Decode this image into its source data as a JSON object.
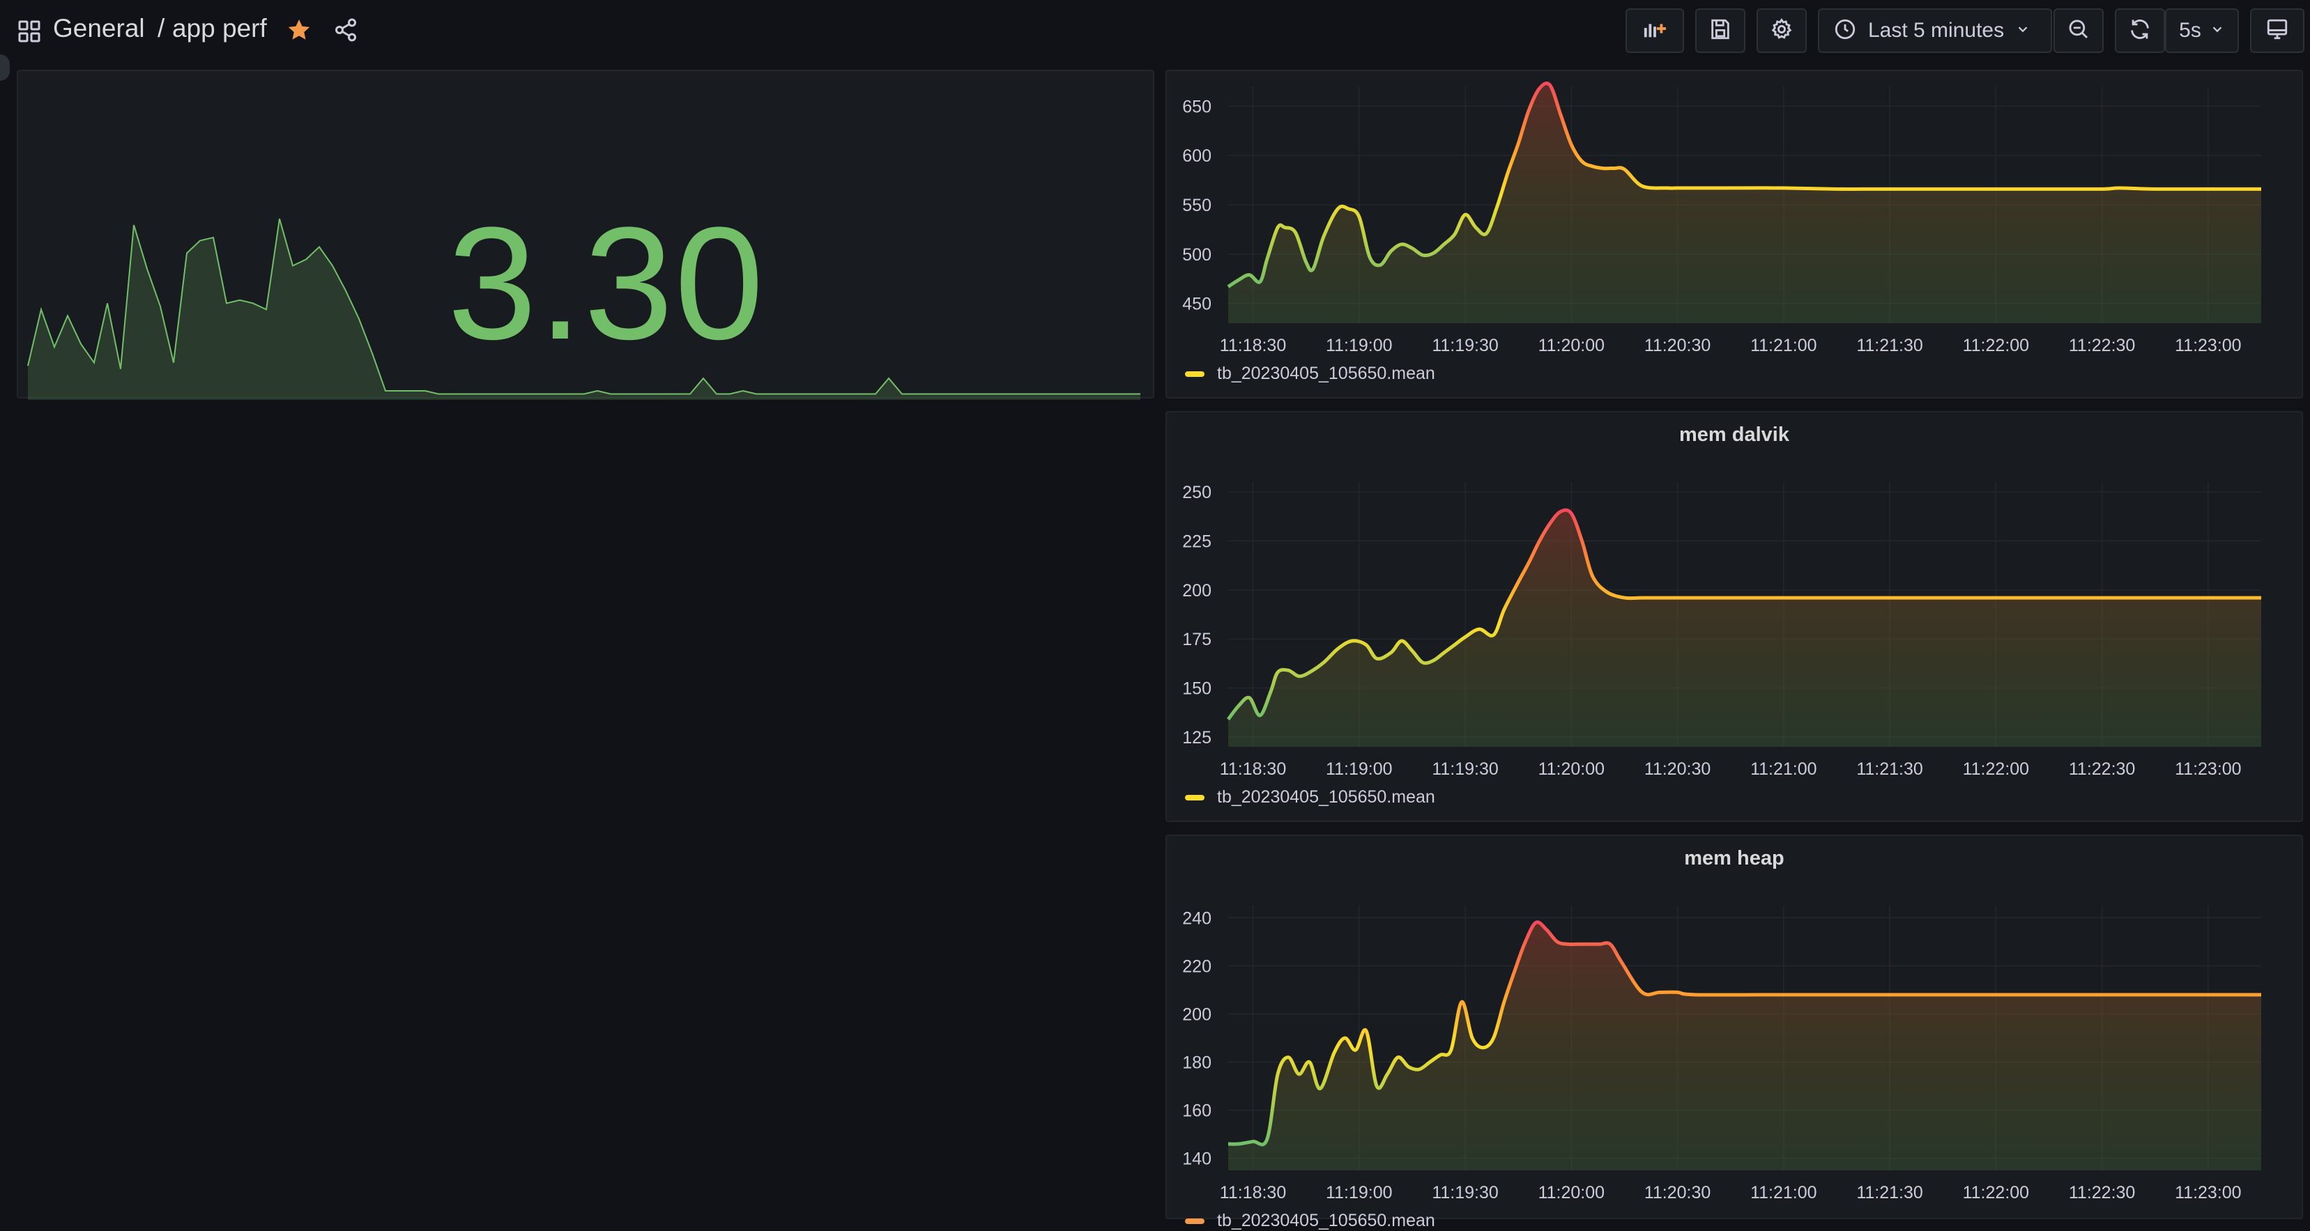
{
  "breadcrumb": {
    "folder": "General",
    "separator": "/",
    "dashboard": "app perf"
  },
  "icons": {
    "apps": "grid-icon",
    "favorite": "star-icon",
    "share": "share-icon",
    "add_panel": "add-panel-icon",
    "save": "save-icon",
    "settings": "gear-icon",
    "time": "clock-icon",
    "zoom_out": "zoom-out-icon",
    "refresh": "refresh-icon",
    "tv_mode": "monitor-icon"
  },
  "colors": {
    "background": "#111217",
    "panel": "#181b1f",
    "stat_green": "#73bf69",
    "star": "#f2994a",
    "series_yellow": "#fade2a",
    "series_red": "#f2495c"
  },
  "toolbar": {
    "time_range": "Last 5 minutes",
    "refresh_interval": "5s"
  },
  "stat_panel": {
    "value": "3.30",
    "sparkline": [
      10,
      28,
      16,
      26,
      17,
      11,
      30,
      9,
      55,
      41,
      29,
      11,
      46,
      50,
      51,
      30,
      31,
      30,
      28,
      57,
      42,
      44,
      48,
      42,
      34,
      25,
      14,
      2,
      2,
      2,
      2,
      1,
      1,
      1,
      1,
      1,
      1,
      1,
      1,
      1,
      1,
      1,
      1,
      2,
      1,
      1,
      1,
      1,
      1,
      1,
      1,
      6,
      1,
      1,
      2,
      1,
      1,
      1,
      1,
      1,
      1,
      1,
      1,
      1,
      1,
      6,
      1,
      1,
      1,
      1,
      1,
      1,
      1,
      1,
      1,
      1,
      1,
      1,
      1,
      1,
      1,
      1,
      1,
      1,
      1
    ]
  },
  "chart_data": [
    {
      "type": "line",
      "title": "",
      "x_ticks": [
        "11:18:30",
        "11:19:00",
        "11:19:30",
        "11:20:00",
        "11:20:30",
        "11:21:00",
        "11:21:30",
        "11:22:00",
        "11:22:30",
        "11:23:00"
      ],
      "y_ticks": [
        450,
        500,
        550,
        600,
        650
      ],
      "ylim": [
        430,
        670
      ],
      "series": [
        {
          "name": "tb_20230405_105650.mean",
          "x": [
            "11:18:23",
            "11:18:26",
            "11:18:29",
            "11:18:32",
            "11:18:34",
            "11:18:37",
            "11:18:39",
            "11:18:42",
            "11:18:45",
            "11:18:47",
            "11:18:50",
            "11:18:54",
            "11:18:57",
            "11:19:00",
            "11:19:03",
            "11:19:06",
            "11:19:09",
            "11:19:12",
            "11:19:15",
            "11:19:18",
            "11:19:21",
            "11:19:24",
            "11:19:27",
            "11:19:30",
            "11:19:33",
            "11:19:36",
            "11:19:39",
            "11:19:42",
            "11:19:45",
            "11:19:48",
            "11:19:51",
            "11:19:54",
            "11:19:57",
            "11:20:00",
            "11:20:03",
            "11:20:06",
            "11:20:09",
            "11:20:12",
            "11:20:15",
            "11:20:20",
            "11:20:27",
            "11:20:30",
            "11:20:35",
            "11:20:45",
            "11:21:00",
            "11:21:15",
            "11:21:30",
            "11:21:45",
            "11:22:00",
            "11:22:15",
            "11:22:30",
            "11:22:35",
            "11:22:45",
            "11:23:00",
            "11:23:10",
            "11:23:15"
          ],
          "values": [
            467,
            474,
            479,
            472,
            495,
            527,
            527,
            522,
            492,
            485,
            518,
            546,
            546,
            538,
            497,
            489,
            503,
            510,
            506,
            499,
            501,
            510,
            520,
            540,
            527,
            521,
            548,
            582,
            612,
            646,
            668,
            671,
            641,
            611,
            594,
            589,
            587,
            587,
            586,
            569,
            567,
            567,
            567,
            567,
            567,
            566,
            566,
            566,
            566,
            566,
            566,
            567,
            566,
            566,
            566,
            566
          ]
        }
      ]
    },
    {
      "type": "line",
      "title": "mem dalvik",
      "x_ticks": [
        "11:18:30",
        "11:19:00",
        "11:19:30",
        "11:20:00",
        "11:20:30",
        "11:21:00",
        "11:21:30",
        "11:22:00",
        "11:22:30",
        "11:23:00"
      ],
      "y_ticks": [
        125,
        150,
        175,
        200,
        225,
        250
      ],
      "ylim": [
        120,
        255
      ],
      "series": [
        {
          "name": "tb_20230405_105650.mean",
          "x": [
            "11:18:23",
            "11:18:26",
            "11:18:29",
            "11:18:32",
            "11:18:35",
            "11:18:37",
            "11:18:40",
            "11:18:43",
            "11:18:46",
            "11:18:50",
            "11:18:54",
            "11:18:58",
            "11:19:02",
            "11:19:05",
            "11:19:09",
            "11:19:12",
            "11:19:15",
            "11:19:18",
            "11:19:21",
            "11:19:24",
            "11:19:27",
            "11:19:30",
            "11:19:34",
            "11:19:38",
            "11:19:41",
            "11:19:45",
            "11:19:48",
            "11:19:51",
            "11:19:54",
            "11:19:57",
            "11:20:00",
            "11:20:03",
            "11:20:06",
            "11:20:10",
            "11:20:15",
            "11:20:20",
            "11:20:30",
            "11:21:00",
            "11:21:30",
            "11:22:00",
            "11:22:30",
            "11:22:45",
            "11:23:00",
            "11:23:15"
          ],
          "values": [
            134,
            141,
            145,
            136,
            148,
            158,
            159,
            156,
            158,
            163,
            170,
            174,
            172,
            165,
            168,
            174,
            169,
            163,
            164,
            168,
            172,
            176,
            180,
            177,
            190,
            204,
            214,
            225,
            234,
            240,
            239,
            225,
            207,
            199,
            196,
            196,
            196,
            196,
            196,
            196,
            196,
            196,
            196,
            196
          ]
        }
      ]
    },
    {
      "type": "line",
      "title": "mem heap",
      "x_ticks": [
        "11:18:30",
        "11:19:00",
        "11:19:30",
        "11:20:00",
        "11:20:30",
        "11:21:00",
        "11:21:30",
        "11:22:00",
        "11:22:30",
        "11:23:00"
      ],
      "y_ticks": [
        140,
        160,
        180,
        200,
        220,
        240
      ],
      "ylim": [
        135,
        245
      ],
      "series": [
        {
          "name": "tb_20230405_105650.mean",
          "x": [
            "11:18:23",
            "11:18:26",
            "11:18:30",
            "11:18:34",
            "11:18:37",
            "11:18:40",
            "11:18:43",
            "11:18:46",
            "11:18:49",
            "11:18:53",
            "11:18:56",
            "11:18:59",
            "11:19:02",
            "11:19:05",
            "11:19:08",
            "11:19:11",
            "11:19:14",
            "11:19:17",
            "11:19:20",
            "11:19:23",
            "11:19:26",
            "11:19:29",
            "11:19:32",
            "11:19:35",
            "11:19:38",
            "11:19:41",
            "11:19:44",
            "11:19:47",
            "11:19:50",
            "11:19:53",
            "11:19:56",
            "11:19:59",
            "11:20:02",
            "11:20:05",
            "11:20:08",
            "11:20:11",
            "11:20:14",
            "11:20:20",
            "11:20:25",
            "11:20:30",
            "11:20:35",
            "11:21:00",
            "11:21:15",
            "11:21:30",
            "11:22:00",
            "11:22:30",
            "11:23:00",
            "11:23:15"
          ],
          "values": [
            146,
            146,
            147,
            148,
            175,
            182,
            175,
            180,
            169,
            184,
            190,
            185,
            193,
            170,
            175,
            182,
            178,
            177,
            180,
            183,
            185,
            205,
            190,
            186,
            190,
            205,
            218,
            230,
            238,
            235,
            230,
            229,
            229,
            229,
            229,
            229,
            222,
            209,
            209,
            209,
            208,
            208,
            208,
            208,
            208,
            208,
            208,
            208
          ]
        }
      ]
    }
  ]
}
